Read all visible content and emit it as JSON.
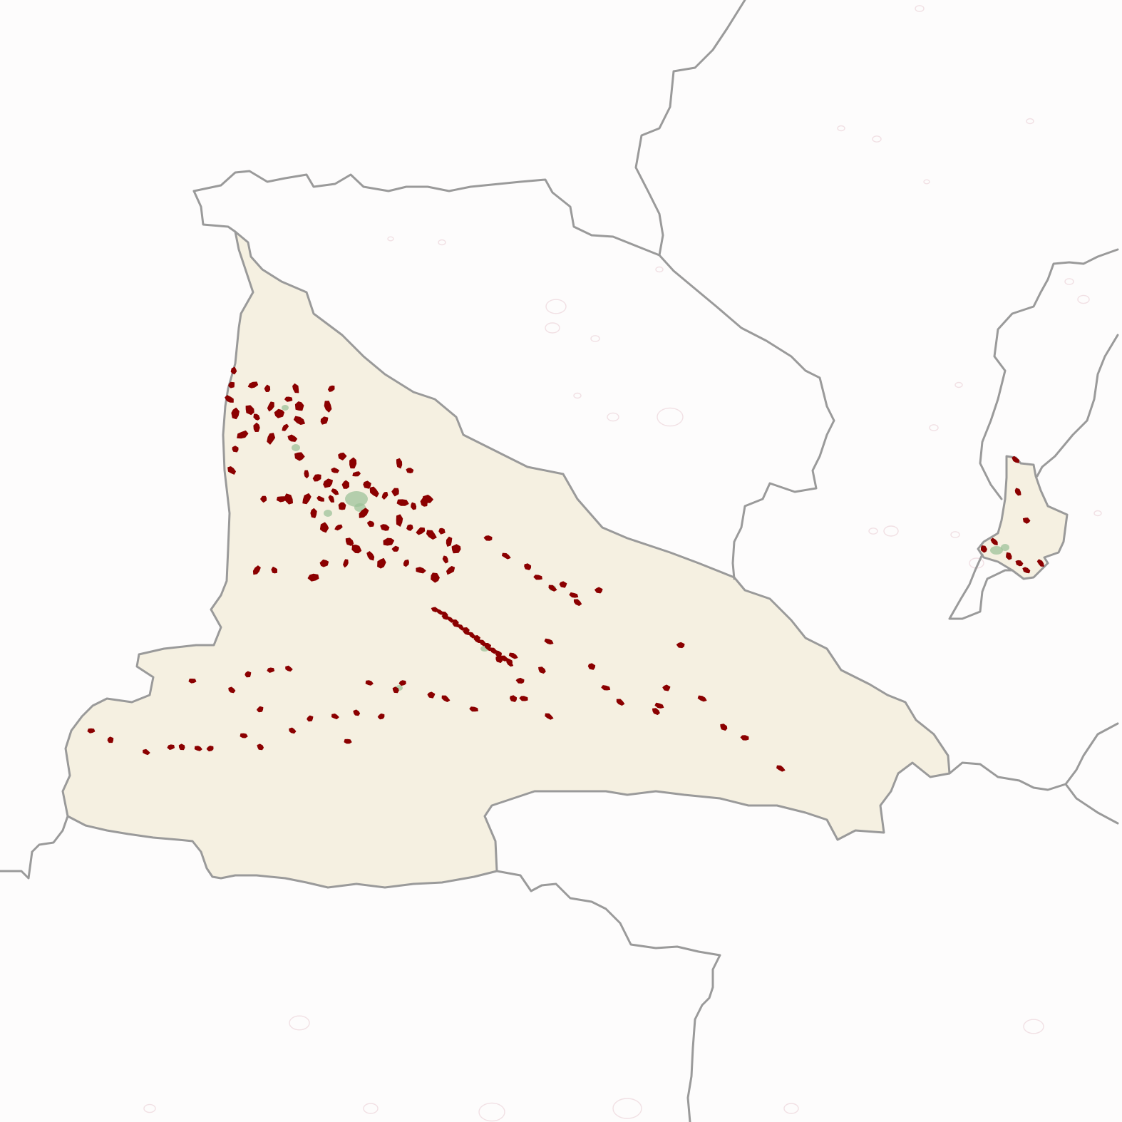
{
  "map": {
    "background_color": "#fdfcfc",
    "boundary_color": "#9a9a9a",
    "region_fill_color": "#f5f0e1",
    "settlement_color": "#8b0000",
    "green_area_color": "#9ec39a",
    "faint_feature_color": "#e8c9cf",
    "layers": [
      "district-boundaries",
      "highlighted-district",
      "settlements",
      "green-areas"
    ],
    "legend": null,
    "labels": []
  }
}
